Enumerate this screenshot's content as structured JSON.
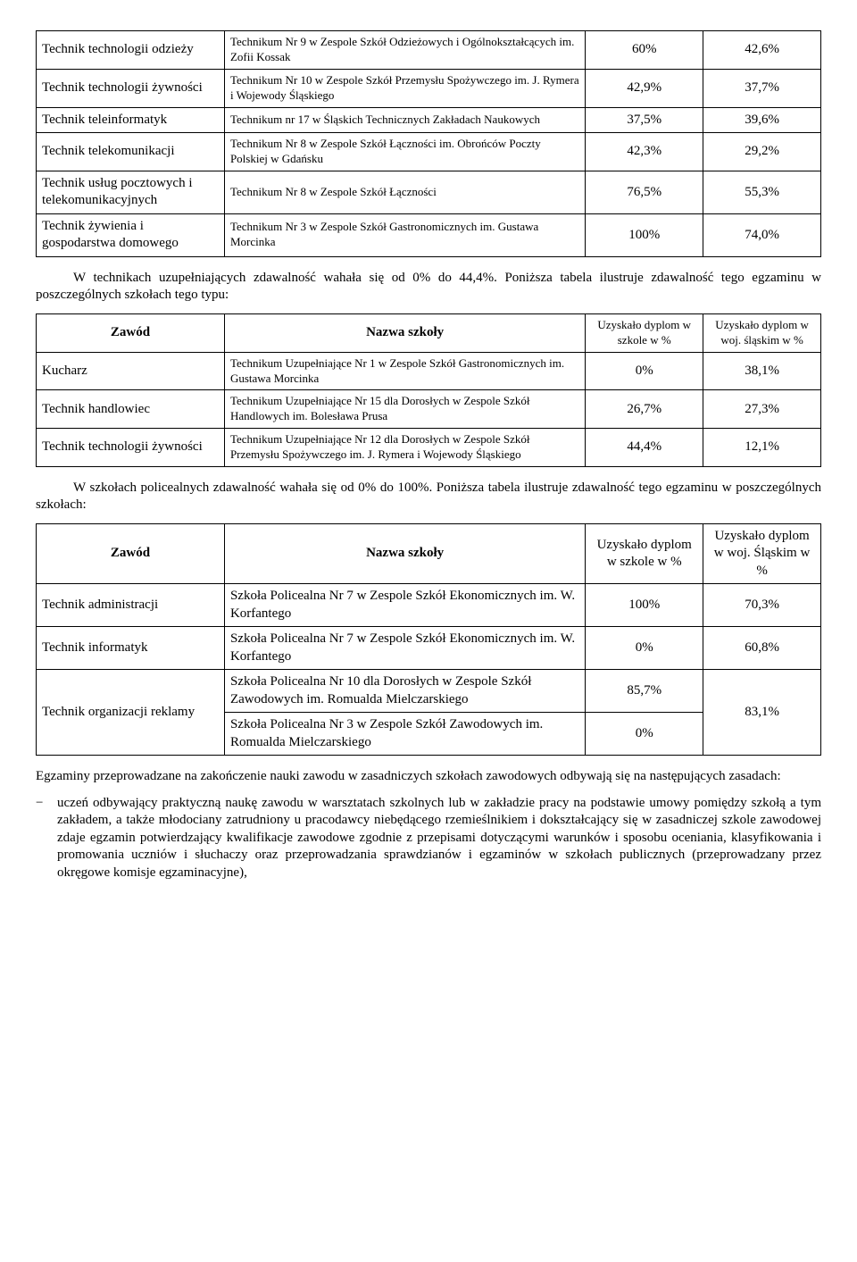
{
  "table1": {
    "rows": [
      {
        "zawod": "Technik technologii odzieży",
        "szkola": "Technikum Nr 9 w Zespole Szkół Odzieżowych i Ogólnokształcących im. Zofii Kossak",
        "v1": "60%",
        "v2": "42,6%"
      },
      {
        "zawod": "Technik technologii żywności",
        "szkola": "Technikum Nr 10 w Zespole Szkół Przemysłu Spożywczego im. J. Rymera i Wojewody Śląskiego",
        "v1": "42,9%",
        "v2": "37,7%"
      },
      {
        "zawod": "Technik teleinformatyk",
        "szkola": "Technikum nr 17 w Śląskich Technicznych Zakładach Naukowych",
        "v1": "37,5%",
        "v2": "39,6%"
      },
      {
        "zawod": "Technik telekomunikacji",
        "szkola": "Technikum Nr 8 w Zespole Szkół Łączności im. Obrońców Poczty Polskiej w Gdańsku",
        "v1": "42,3%",
        "v2": "29,2%"
      },
      {
        "zawod": "Technik usług pocztowych i telekomunikacyjnych",
        "szkola": "Technikum Nr 8 w Zespole Szkół Łączności",
        "v1": "76,5%",
        "v2": "55,3%"
      },
      {
        "zawod": "Technik żywienia i gospodarstwa domowego",
        "szkola": "Technikum Nr 3 w Zespole Szkół Gastronomicznych im. Gustawa Morcinka",
        "v1": "100%",
        "v2": "74,0%"
      }
    ]
  },
  "para1": "W technikach uzupełniających zdawalność wahała się od 0% do 44,4%. Poniższa tabela ilustruje zdawalność tego egzaminu w poszczególnych szkołach tego typu:",
  "headers": {
    "zawod": "Zawód",
    "szkola": "Nazwa szkoły",
    "v1": "Uzyskało dyplom w szkole w %",
    "v2a": "Uzyskało dyplom w woj. śląskim w %",
    "v2b": "Uzyskało dyplom w woj. Śląskim w %"
  },
  "table2": {
    "rows": [
      {
        "zawod": "Kucharz",
        "szkola": "Technikum Uzupełniające Nr 1 w Zespole Szkół Gastronomicznych im. Gustawa Morcinka",
        "v1": "0%",
        "v2": "38,1%"
      },
      {
        "zawod": "Technik handlowiec",
        "szkola": "Technikum Uzupełniające Nr 15 dla Dorosłych w Zespole Szkół Handlowych im. Bolesława Prusa",
        "v1": "26,7%",
        "v2": "27,3%"
      },
      {
        "zawod": "Technik technologii żywności",
        "szkola": "Technikum Uzupełniające Nr 12 dla Dorosłych w Zespole Szkół Przemysłu Spożywczego im. J. Rymera i Wojewody Śląskiego",
        "v1": "44,4%",
        "v2": "12,1%"
      }
    ]
  },
  "para2": "W szkołach policealnych zdawalność wahała się od 0% do 100%. Poniższa tabela ilustruje zdawalność tego egzaminu w poszczególnych szkołach:",
  "table3": {
    "row1": {
      "zawod": "Technik administracji",
      "szkola": "Szkoła Policealna Nr 7 w Zespole Szkół Ekonomicznych im. W. Korfantego",
      "v1": "100%",
      "v2": "70,3%"
    },
    "row2": {
      "zawod": "Technik informatyk",
      "szkola": "Szkoła Policealna Nr 7 w Zespole Szkół Ekonomicznych im. W. Korfantego",
      "v1": "0%",
      "v2": "60,8%"
    },
    "row3": {
      "zawod": "Technik organizacji reklamy",
      "szkola_a": "Szkoła Policealna Nr 10 dla Dorosłych w Zespole Szkół Zawodowych im. Romualda Mielczarskiego",
      "v1_a": "85,7%",
      "szkola_b": "Szkoła Policealna Nr 3 w Zespole Szkół Zawodowych im. Romualda Mielczarskiego",
      "v1_b": "0%",
      "v2": "83,1%"
    }
  },
  "para3": "Egzaminy przeprowadzane na zakończenie nauki zawodu w zasadniczych szkołach zawodowych odbywają się na następujących zasadach:",
  "bullet1": "uczeń odbywający praktyczną naukę zawodu w warsztatach szkolnych lub w zakładzie pracy na podstawie umowy pomiędzy szkołą a tym zakładem, a także młodociany zatrudniony u pracodawcy niebędącego rzemieślnikiem i dokształcający się w zasadniczej szkole zawodowej zdaje egzamin potwierdzający kwalifikacje zawodowe zgodnie z przepisami dotyczącymi warunków i sposobu oceniania, klasyfikowania i promowania uczniów i słuchaczy oraz przeprowadzania sprawdzianów i egzaminów w szkołach publicznych (przeprowadzany przez okręgowe komisje egzaminacyjne),"
}
